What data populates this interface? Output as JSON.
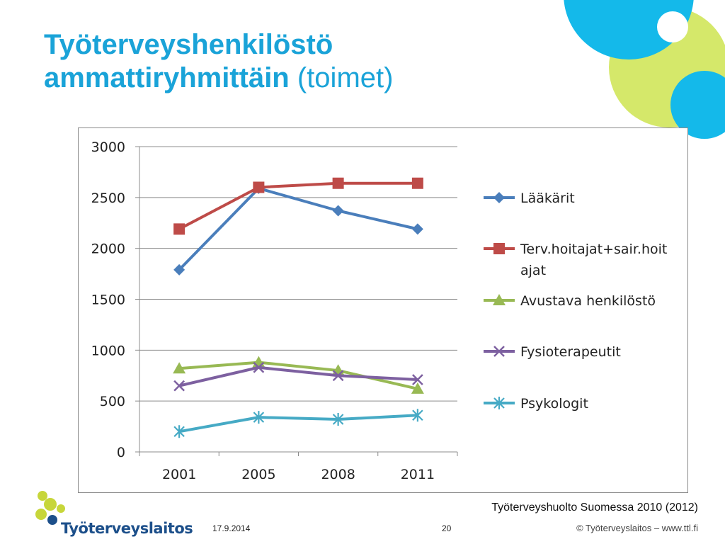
{
  "slide": {
    "title_bold": "Työterveyshenkilöstö ammattiryhmittäin",
    "title_normal": "(toimet)",
    "source": "Työterveyshuolto Suomessa 2010 (2012)",
    "date": "17.9.2014",
    "page": "20",
    "copyright": "© Työterveyslaitos  –  www.ttl.fi",
    "logo_text": "Työterveyslaitos"
  },
  "colors": {
    "title": "#1aa3d8",
    "deco_cyan": "#1ab8e8",
    "deco_lime": "#d5e86a"
  },
  "chart_data": {
    "type": "line",
    "categories": [
      "2001",
      "2005",
      "2008",
      "2011"
    ],
    "ylim": [
      0,
      3000
    ],
    "yticks": [
      "0",
      "500",
      "1000",
      "1500",
      "2000",
      "2500",
      "3000"
    ],
    "grid": true,
    "legend_position": "right",
    "series": [
      {
        "name": "Lääkärit",
        "values": [
          1790,
          2590,
          2370,
          2190
        ],
        "color": "#4a7ebb",
        "marker": "diamond"
      },
      {
        "name": "Terv.hoitajat+sair.hoit ajat",
        "name_lines": [
          "Terv.hoitajat+sair.hoit",
          "ajat"
        ],
        "values": [
          2190,
          2600,
          2640,
          2640
        ],
        "color": "#be4b48",
        "marker": "square"
      },
      {
        "name": "Avustava henkilöstö",
        "values": [
          820,
          880,
          800,
          620
        ],
        "color": "#98b954",
        "marker": "triangle"
      },
      {
        "name": "Fysioterapeutit",
        "values": [
          650,
          830,
          750,
          710
        ],
        "color": "#7d60a0",
        "marker": "x"
      },
      {
        "name": "Psykologit",
        "values": [
          200,
          340,
          320,
          360
        ],
        "color": "#46aac5",
        "marker": "star"
      }
    ]
  }
}
